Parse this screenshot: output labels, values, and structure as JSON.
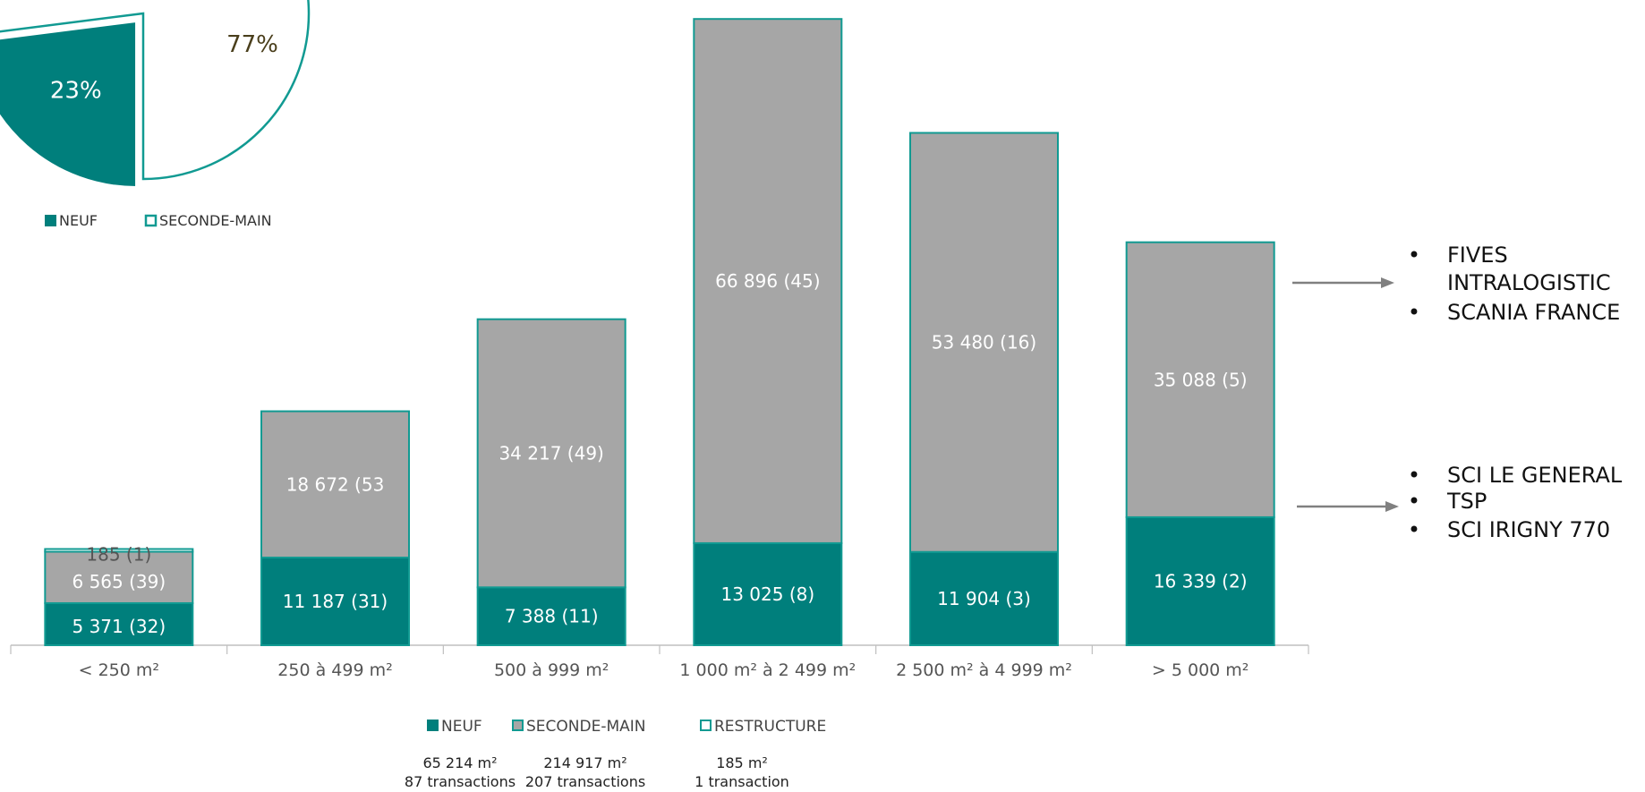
{
  "colors": {
    "neuf": "#007f7c",
    "seconde_main": "#a6a6a6",
    "restructure": "#ffffff",
    "outline": "#119a92",
    "axis": "#bfbfbf",
    "arrow": "#808080",
    "pie_neuf_text": "#ffffff",
    "pie_sm_text": "#4a3f1c"
  },
  "pie": {
    "slices": [
      {
        "name": "NEUF",
        "percent": 23,
        "label": "23%"
      },
      {
        "name": "SECONDE-MAIN",
        "percent": 77,
        "label": "77%"
      }
    ],
    "legend": [
      {
        "label": "NEUF",
        "style": "filled"
      },
      {
        "label": "SECONDE-MAIN",
        "style": "outline"
      }
    ]
  },
  "chart_data": [
    {
      "type": "pie",
      "categories": [
        "NEUF",
        "SECONDE-MAIN"
      ],
      "values": [
        23,
        77
      ],
      "labels": [
        "23%",
        "77%"
      ],
      "legend_position": "bottom"
    },
    {
      "type": "bar",
      "stacked": true,
      "categories": [
        "< 250 m²",
        "250 à 499 m²",
        "500 à 999 m²",
        "1 000 m² à 2 499 m²",
        "2 500 m² à 4 999 m²",
        "> 5 000 m²"
      ],
      "series": [
        {
          "name": "NEUF",
          "values": [
            5371,
            11187,
            7388,
            13025,
            11904,
            16339
          ],
          "counts": [
            32,
            31,
            11,
            8,
            3,
            2
          ],
          "labels": [
            "5 371   (32)",
            "11 187    (31)",
            "7 388    (11)",
            "13 025   (8)",
            "11 904   (3)",
            "16 339   (2)"
          ]
        },
        {
          "name": "SECONDE-MAIN",
          "values": [
            6565,
            18672,
            34217,
            66896,
            53480,
            35088
          ],
          "counts": [
            39,
            53,
            49,
            45,
            16,
            5
          ],
          "labels": [
            "6 565   (39)",
            "18 672   (53",
            "34 217   (49)",
            "66 896   (45)",
            "53 480   (16)",
            "35 088   (5)"
          ]
        },
        {
          "name": "RESTRUCTURE",
          "values": [
            185,
            0,
            0,
            0,
            0,
            0
          ],
          "counts": [
            1,
            0,
            0,
            0,
            0,
            0
          ],
          "labels": [
            "185   (1)",
            "",
            "",
            "",
            "",
            ""
          ]
        }
      ],
      "ylim": [
        0,
        80000
      ],
      "grid": false,
      "legend_position": "bottom"
    }
  ],
  "bar_legend": [
    {
      "label": "NEUF",
      "style": "neuf"
    },
    {
      "label": "SECONDE-MAIN",
      "style": "seconde_main"
    },
    {
      "label": "RESTRUCTURE",
      "style": "restructure"
    }
  ],
  "totals": [
    {
      "area": "65 214 m²",
      "transactions": "87 transactions"
    },
    {
      "area": "214 917 m²",
      "transactions": "207 transactions"
    },
    {
      "area": "185 m²",
      "transactions": "1 transaction"
    }
  ],
  "annotations": [
    {
      "lines": [
        "FIVES",
        "INTRALOGISTIC",
        "SCANIA FRANCE"
      ],
      "bullets": [
        true,
        false,
        true
      ]
    },
    {
      "lines": [
        "SCI LE GENERAL",
        "TSP",
        "SCI IRIGNY 770"
      ],
      "bullets": [
        true,
        true,
        true
      ]
    }
  ]
}
